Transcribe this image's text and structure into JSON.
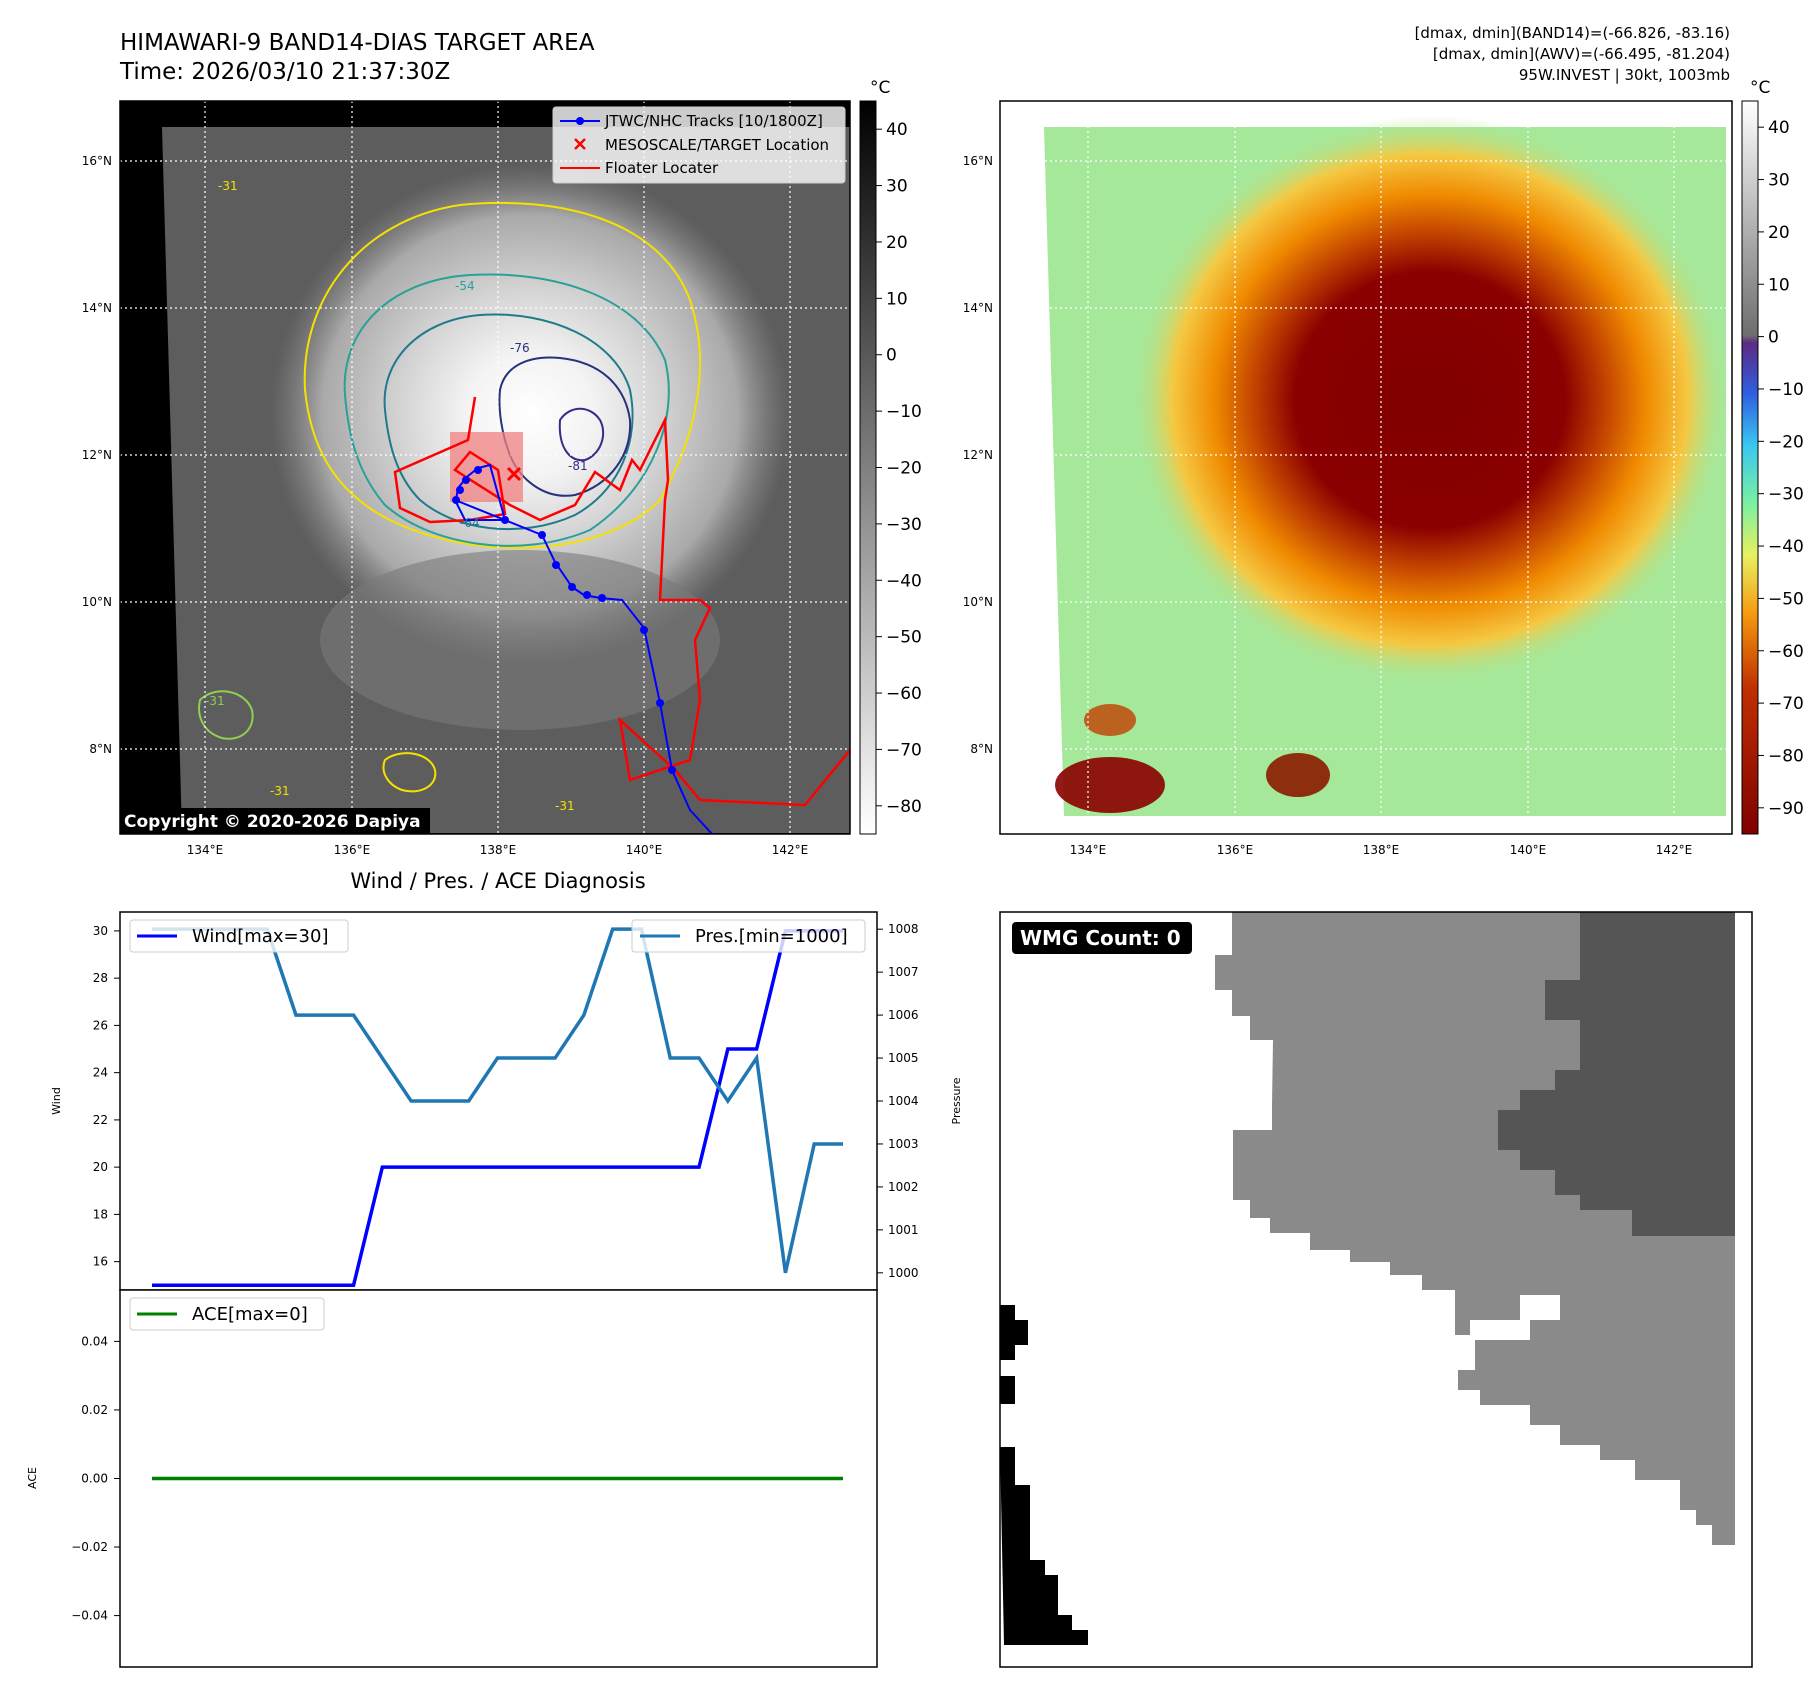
{
  "header": {
    "title_line1": "HIMAWARI-9 BAND14-DIAS TARGET AREA",
    "title_line2": "Time: 2026/03/10 21:37:30Z",
    "info_line1": "[dmax, dmin](BAND14)=(-66.826, -83.16)",
    "info_line2": "[dmax, dmin](AWV)=(-66.495, -81.204)",
    "info_line3": "95W.INVEST | 30kt, 1003mb"
  },
  "ir_map": {
    "lat_ticks": [
      "16°N",
      "14°N",
      "12°N",
      "10°N",
      "8°N"
    ],
    "lon_ticks": [
      "134°E",
      "136°E",
      "138°E",
      "140°E",
      "142°E"
    ],
    "legend": [
      "JTWC/NHC Tracks [10/1800Z]",
      "MESOSCALE/TARGET Location",
      "Floater Locater"
    ],
    "copyright": "Copyright © 2020-2026 Dapiya",
    "contour_labels": [
      "-31",
      "-54",
      "-64",
      "-76",
      "-81",
      "-31",
      "-31",
      "-31"
    ],
    "colorbar_unit": "°C",
    "colorbar_ticks": [
      "40",
      "30",
      "20",
      "10",
      "0",
      "−10",
      "−20",
      "−30",
      "−40",
      "−50",
      "−60",
      "−70",
      "−80"
    ],
    "colors": {
      "track": "#0000ff",
      "target": "#ff0000",
      "floater": "#ff0000",
      "box": "#f08080"
    }
  },
  "awv_map": {
    "lat_ticks": [
      "16°N",
      "14°N",
      "12°N",
      "10°N",
      "8°N"
    ],
    "lon_ticks": [
      "134°E",
      "136°E",
      "138°E",
      "140°E",
      "142°E"
    ],
    "colorbar_unit": "°C",
    "colorbar_ticks": [
      "40",
      "30",
      "20",
      "10",
      "0",
      "−10",
      "−20",
      "−30",
      "−40",
      "−50",
      "−60",
      "−70",
      "−80",
      "−90"
    ]
  },
  "diag": {
    "title": "Wind / Pres. / ACE Diagnosis",
    "wind_label": "Wind",
    "pressure_label": "Pressure",
    "ace_label": "ACE",
    "wind_legend": "Wind[max=30]",
    "pres_legend": "Pres.[min=1000]",
    "ace_legend": "ACE[max=0]",
    "wind_ticks": [
      "30",
      "28",
      "26",
      "24",
      "22",
      "20",
      "18",
      "16"
    ],
    "pres_ticks": [
      "1008",
      "1007",
      "1006",
      "1005",
      "1004",
      "1003",
      "1002",
      "1001",
      "1000"
    ],
    "ace_ticks": [
      "0.04",
      "0.02",
      "0.00",
      "−0.02",
      "−0.04"
    ],
    "colors": {
      "wind": "#0000ff",
      "pressure": "#1f77b4",
      "ace": "#008000"
    }
  },
  "wmg": {
    "label": "WMG Count: 0"
  },
  "chart_data": [
    {
      "type": "line",
      "title": "Wind / Pres. / ACE Diagnosis",
      "ylabel": "Wind",
      "y2label": "Pressure",
      "ylim": [
        14.8,
        30.8
      ],
      "y2lim": [
        999.6,
        1008.4
      ],
      "x": [
        0,
        1,
        2,
        3,
        4,
        5,
        6,
        7,
        8,
        9,
        10,
        11,
        12,
        13,
        14,
        15,
        16,
        17,
        18,
        19,
        20,
        21,
        22,
        23,
        24
      ],
      "series": [
        {
          "name": "Wind[max=30]",
          "axis": "left",
          "values": [
            15,
            15,
            15,
            15,
            15,
            15,
            15,
            15,
            20,
            20,
            20,
            20,
            20,
            20,
            20,
            20,
            20,
            20,
            20,
            20,
            25,
            25,
            30,
            30,
            30
          ]
        },
        {
          "name": "Pres.[min=1000]",
          "axis": "right",
          "values": [
            1008,
            1008,
            1008,
            1008,
            1008,
            1006,
            1006,
            1006,
            1005,
            1004,
            1004,
            1004,
            1005,
            1005,
            1005,
            1006,
            1008,
            1008,
            1005,
            1005,
            1004,
            1005,
            1000,
            1003,
            1003
          ]
        }
      ]
    },
    {
      "type": "line",
      "ylabel": "ACE",
      "ylim": [
        -0.055,
        0.055
      ],
      "x": [
        0,
        24
      ],
      "series": [
        {
          "name": "ACE[max=0]",
          "values": [
            0,
            0
          ]
        }
      ]
    }
  ]
}
